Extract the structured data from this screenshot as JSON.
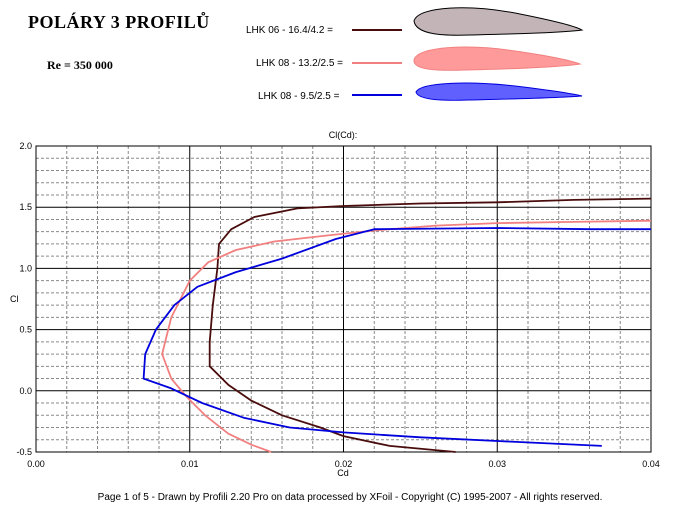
{
  "header": {
    "title": "POLÁRY 3 PROFILŮ",
    "reynolds": "Re = 350 000"
  },
  "footer": {
    "text": "Page 1 of 5   -   Drawn by Profili 2.20 Pro on data processed by  XFoil - Copyright (C) 1995-2007 - All rights reserved."
  },
  "colors": {
    "series_1": "#4a0d0d",
    "series_2": "#f28080",
    "series_3": "#0000dd",
    "airfoil_1_fill": "#c2b4b7",
    "airfoil_2_fill": "#ff9a9a",
    "airfoil_3_fill": "#6060ff"
  },
  "chart_data": {
    "type": "line",
    "title": "Cl(Cd):",
    "xlabel": "Cd",
    "ylabel": "Cl",
    "xlim": [
      0.0,
      0.04
    ],
    "ylim": [
      -0.5,
      2.0
    ],
    "xticks": [
      "0.00",
      "0.01",
      "0.02",
      "0.03",
      "0.04"
    ],
    "yticks": [
      "2.0",
      "1.5",
      "1.0",
      "0.5",
      "0.0",
      "-0.5"
    ],
    "grid": true,
    "legend_position": "top",
    "series": [
      {
        "name": "LHK 06  -  16.4/4.2 =",
        "color": "#4a0d0d",
        "points": [
          [
            0.0273,
            -0.5
          ],
          [
            0.023,
            -0.45
          ],
          [
            0.02,
            -0.37
          ],
          [
            0.0185,
            -0.3
          ],
          [
            0.016,
            -0.2
          ],
          [
            0.014,
            -0.08
          ],
          [
            0.0125,
            0.05
          ],
          [
            0.0113,
            0.2
          ],
          [
            0.0113,
            0.4
          ],
          [
            0.0115,
            0.7
          ],
          [
            0.0118,
            1.0
          ],
          [
            0.0119,
            1.2
          ],
          [
            0.0127,
            1.32
          ],
          [
            0.0142,
            1.42
          ],
          [
            0.017,
            1.49
          ],
          [
            0.02,
            1.51
          ],
          [
            0.025,
            1.53
          ],
          [
            0.03,
            1.54
          ],
          [
            0.035,
            1.56
          ],
          [
            0.04,
            1.57
          ]
        ]
      },
      {
        "name": "LHK 08 - 13.2/2.5 =",
        "color": "#f28080",
        "points": [
          [
            0.0153,
            -0.5
          ],
          [
            0.014,
            -0.44
          ],
          [
            0.0125,
            -0.35
          ],
          [
            0.011,
            -0.2
          ],
          [
            0.0098,
            -0.05
          ],
          [
            0.0088,
            0.1
          ],
          [
            0.0082,
            0.3
          ],
          [
            0.0088,
            0.6
          ],
          [
            0.01,
            0.9
          ],
          [
            0.0112,
            1.05
          ],
          [
            0.013,
            1.15
          ],
          [
            0.0155,
            1.22
          ],
          [
            0.019,
            1.27
          ],
          [
            0.022,
            1.31
          ],
          [
            0.026,
            1.35
          ],
          [
            0.03,
            1.37
          ],
          [
            0.035,
            1.38
          ],
          [
            0.04,
            1.39
          ]
        ]
      },
      {
        "name": "LHK 08 - 9.5/2.5 =",
        "color": "#0000dd",
        "points": [
          [
            0.0368,
            -0.45
          ],
          [
            0.03,
            -0.41
          ],
          [
            0.025,
            -0.38
          ],
          [
            0.02,
            -0.34
          ],
          [
            0.0165,
            -0.3
          ],
          [
            0.0135,
            -0.22
          ],
          [
            0.0108,
            -0.1
          ],
          [
            0.0088,
            0.02
          ],
          [
            0.007,
            0.1
          ],
          [
            0.0071,
            0.3
          ],
          [
            0.0078,
            0.5
          ],
          [
            0.009,
            0.7
          ],
          [
            0.0105,
            0.85
          ],
          [
            0.013,
            0.97
          ],
          [
            0.016,
            1.08
          ],
          [
            0.0195,
            1.24
          ],
          [
            0.022,
            1.32
          ],
          [
            0.03,
            1.33
          ],
          [
            0.036,
            1.32
          ],
          [
            0.04,
            1.32
          ]
        ]
      }
    ]
  }
}
